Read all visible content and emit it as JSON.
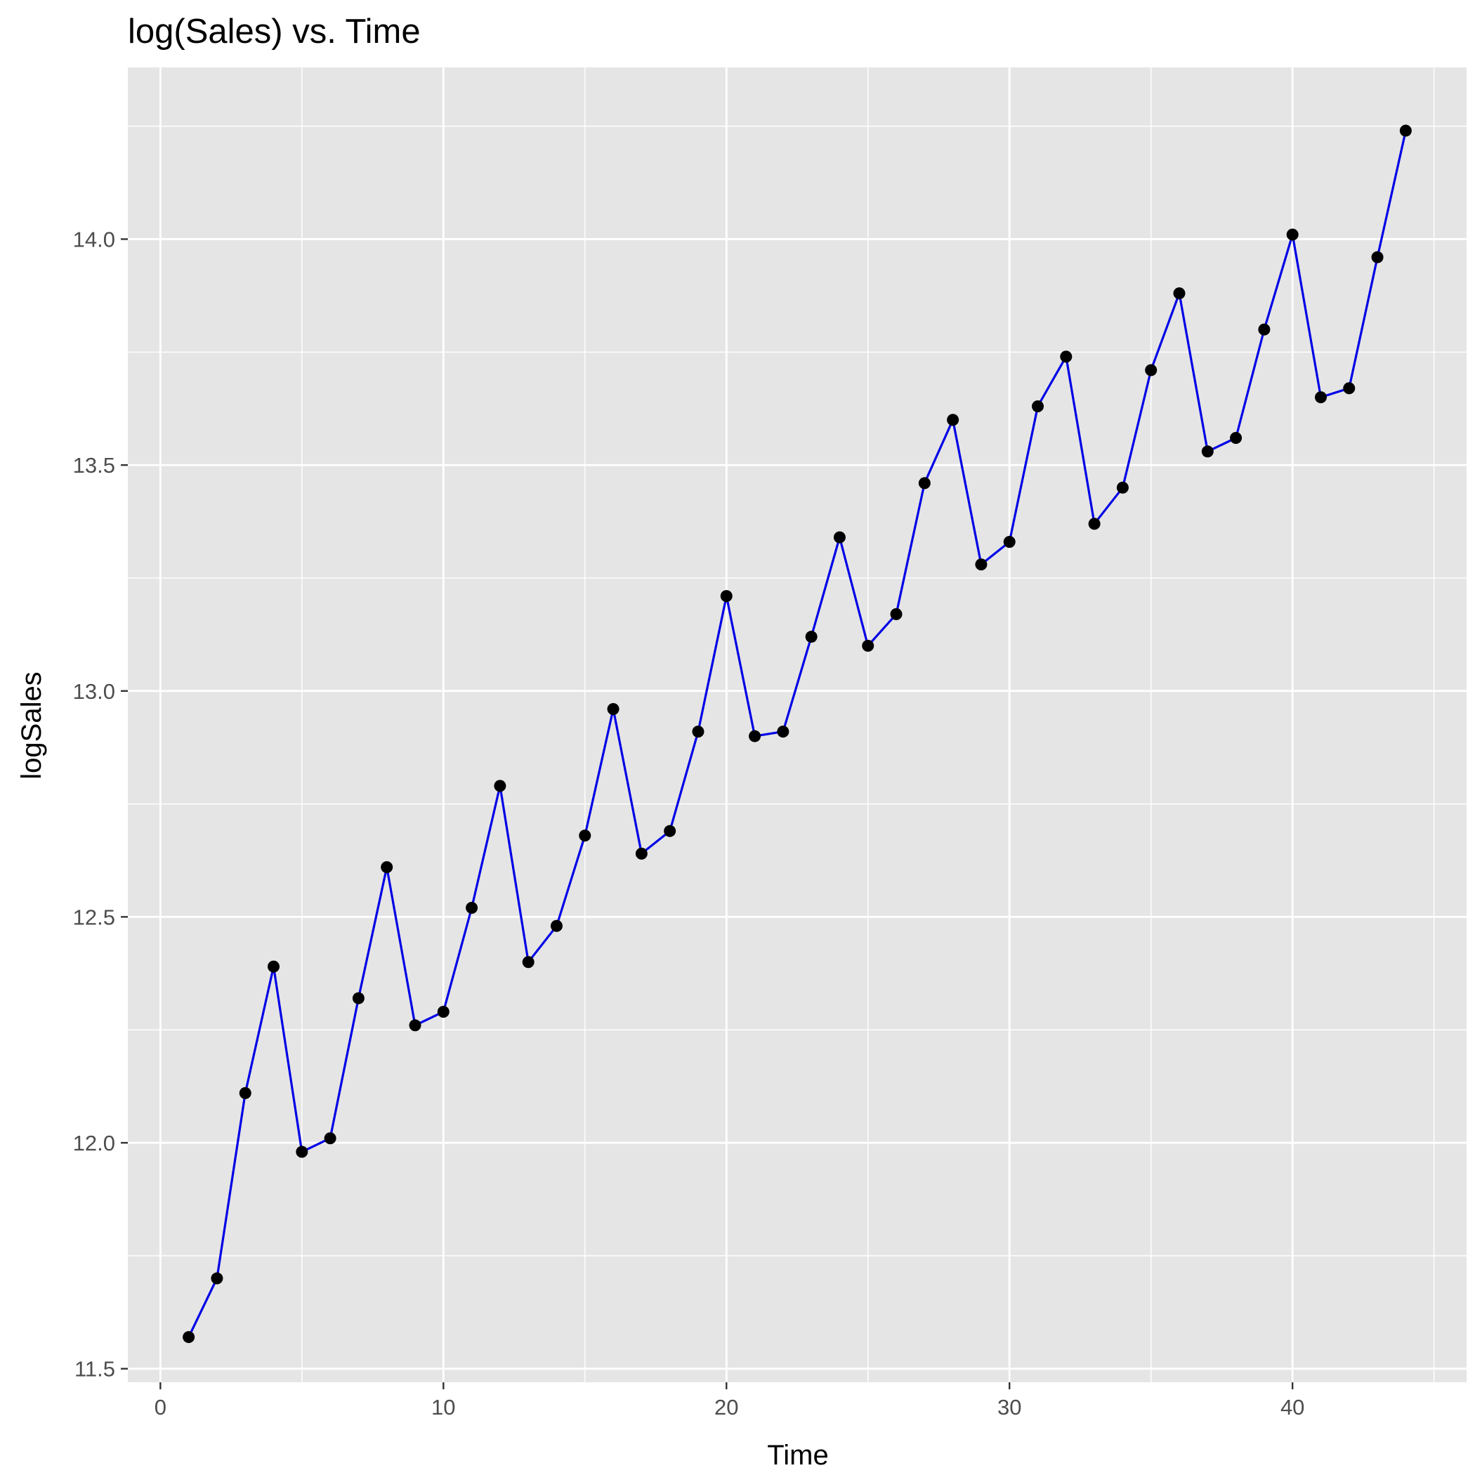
{
  "chart_data": {
    "type": "line",
    "title": "log(Sales) vs. Time",
    "xlabel": "Time",
    "ylabel": "logSales",
    "xlim": [
      -1.15,
      46.15
    ],
    "ylim": [
      11.47,
      14.38
    ],
    "x_ticks": [
      0,
      10,
      20,
      30,
      40
    ],
    "x_tick_labels": [
      "0",
      "10",
      "20",
      "30",
      "40"
    ],
    "x_minor_ticks": [
      5,
      15,
      25,
      35,
      45
    ],
    "y_ticks": [
      11.5,
      12.0,
      12.5,
      13.0,
      13.5,
      14.0
    ],
    "y_tick_labels": [
      "11.5",
      "12.0",
      "12.5",
      "13.0",
      "13.5",
      "14.0"
    ],
    "y_minor_ticks": [
      11.75,
      12.25,
      12.75,
      13.25,
      13.75,
      14.25
    ],
    "grid": true,
    "legend": "none",
    "colors": {
      "panel": "#e5e5e5",
      "grid": "#ffffff",
      "line": "#0000e6",
      "point": "#000000"
    },
    "series": [
      {
        "x": [
          1,
          2,
          3,
          4,
          5,
          6,
          7,
          8,
          9,
          10,
          11,
          12,
          13,
          14,
          15,
          16,
          17,
          18,
          19,
          20,
          21,
          22,
          23,
          24,
          25,
          26,
          27,
          28,
          29,
          30,
          31,
          32,
          33,
          34,
          35,
          36,
          37,
          38,
          39,
          40,
          41,
          42,
          43,
          44
        ],
        "values": [
          11.57,
          11.7,
          12.11,
          12.39,
          11.98,
          12.01,
          12.32,
          12.61,
          12.26,
          12.29,
          12.52,
          12.79,
          12.4,
          12.48,
          12.68,
          12.96,
          12.64,
          12.69,
          12.91,
          13.21,
          12.9,
          12.91,
          13.12,
          13.34,
          13.1,
          13.17,
          13.46,
          13.6,
          13.28,
          13.33,
          13.63,
          13.74,
          13.37,
          13.45,
          13.71,
          13.88,
          13.53,
          13.56,
          13.8,
          14.01,
          13.65,
          13.67,
          13.96,
          14.24
        ]
      }
    ]
  }
}
